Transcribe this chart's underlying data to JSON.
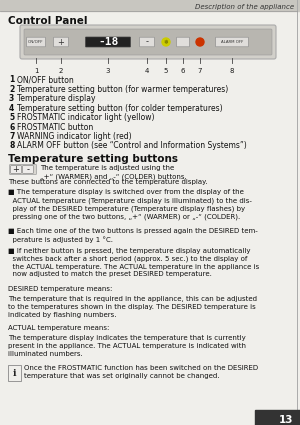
{
  "page_header": "Description of the appliance",
  "page_number": "13",
  "section1_title": "Control Panel",
  "section2_title": "Temperature setting buttons",
  "numbered_items": [
    "  ON/OFF button",
    "  Temperature setting button (for warmer temperatures)",
    "  Temperature display",
    "  Temperature setting button (for colder temperatures)",
    "  FROSTMATIC indicator light (yellow)",
    "  FROSTMATIC button",
    "  WARNING indicator light (red)",
    "  ALARM OFF button (see “Control and Information Systems”)"
  ],
  "num_labels": [
    "1",
    "2",
    "3",
    "4",
    "5",
    "6",
    "7",
    "8"
  ],
  "body_intro": "These buttons are connected to the temperature display.",
  "bullet1": "■ The temperature display is switched over from the display of the\n  ACTUAL temperature (Temperature display is illuminated) to the dis-\n  play of the DESIRED temperature (Temperature display flashes) by\n  pressing one of the two buttons, „+“ (WARMER) or „-“ (COLDER).",
  "bullet2": "■ Each time one of the two buttons is pressed again the DESIRED tem-\n  perature is adjusted by 1 °C.",
  "bullet3": "■ If neither button is pressed, the temperature display automatically\n  switches back after a short period (approx. 5 sec.) to the display of\n  the ACTUAL temperature. The ACTUAL temperature in the appliance is\n  now adjusted to match the preset DESIRED temperature.",
  "desired_title": "DESIRED temperature means:",
  "desired_body": "The temperature that is required in the appliance, this can be adjusted\nto the temperatures shown in the display. The DESIRED temperature is\nindicated by flashing numbers.",
  "actual_title": "ACTUAL temperature means:",
  "actual_body": "The temperature display indicates the temperature that is currently\npresent in the appliance. The ACTUAL temperature is indicated with\nilluminated numbers.",
  "info_text": "Once the FROSTMATIC function has been switched on the DESIRED\ntemperature that was set originally cannot be changed.",
  "bg_color": "#f0efeb",
  "header_color": "#c8c6c0",
  "text_color": "#1a1a1a",
  "panel_color": "#d2d0ca",
  "panel_inner": "#b8b6b0",
  "display_color": "#222222",
  "btn_color": "#e0dedb"
}
